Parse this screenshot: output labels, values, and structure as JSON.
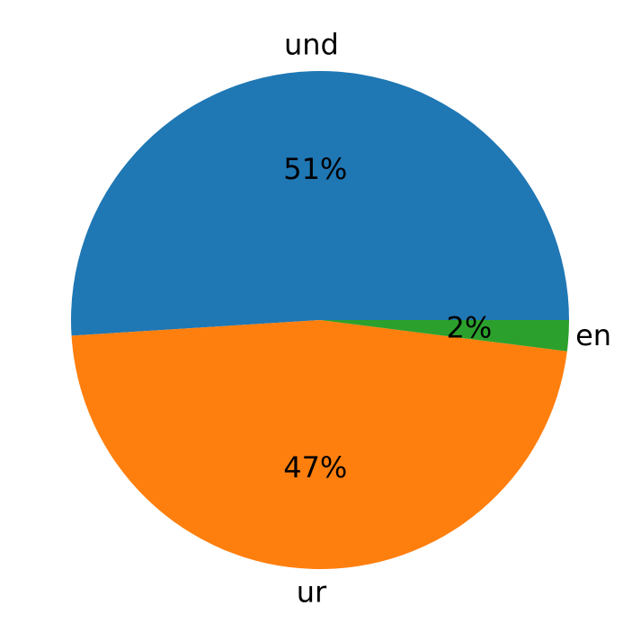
{
  "chart_data": {
    "type": "pie",
    "categories": [
      "und",
      "ur",
      "en"
    ],
    "values": [
      51,
      47,
      2
    ],
    "value_labels": [
      "51%",
      "47%",
      "2%"
    ],
    "colors": [
      "#1f77b4",
      "#ff7f0e",
      "#2ca02c"
    ],
    "start_angle": 0,
    "counterclockwise": true
  }
}
